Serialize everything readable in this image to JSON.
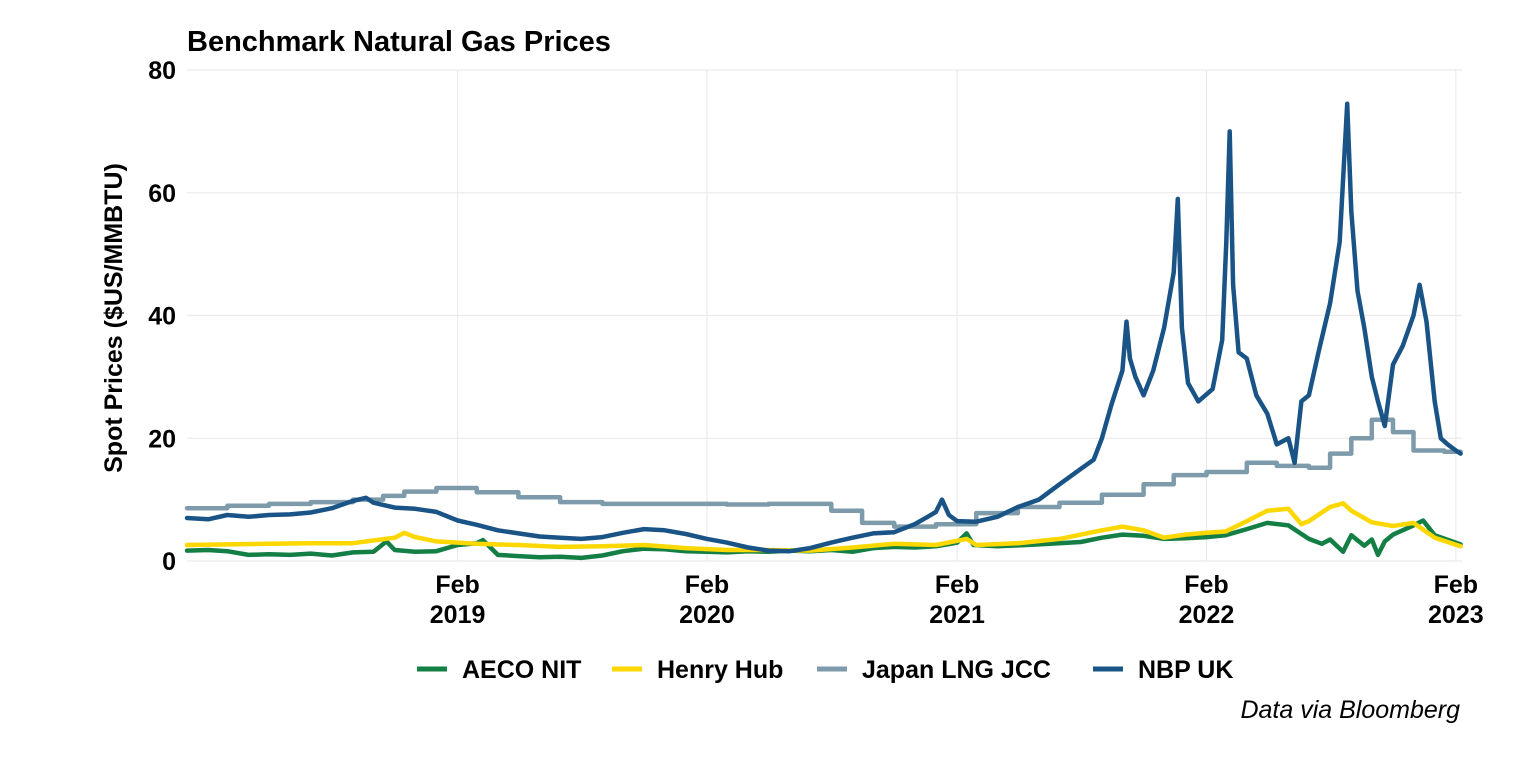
{
  "chart_data": {
    "type": "line",
    "title": "Benchmark Natural Gas Prices",
    "ylabel": "Spot Prices ($US/MMBTU)",
    "xlabel": "",
    "caption": "Data via Bloomberg",
    "grid": true,
    "legend_position": "bottom",
    "xlim": [
      "2018-01-01",
      "2023-02-10"
    ],
    "ylim": [
      0,
      80
    ],
    "y_ticks": [
      {
        "value": 0,
        "label": "0"
      },
      {
        "value": 20,
        "label": "20"
      },
      {
        "value": 40,
        "label": "40"
      },
      {
        "value": 60,
        "label": "60"
      },
      {
        "value": 80,
        "label": "80"
      }
    ],
    "x_ticks": [
      {
        "date": "2019-02-01",
        "line1": "Feb",
        "line2": "2019"
      },
      {
        "date": "2020-02-01",
        "line1": "Feb",
        "line2": "2020"
      },
      {
        "date": "2021-02-01",
        "line1": "Feb",
        "line2": "2021"
      },
      {
        "date": "2022-02-01",
        "line1": "Feb",
        "line2": "2022"
      },
      {
        "date": "2023-02-01",
        "line1": "Feb",
        "line2": "2023"
      }
    ],
    "series": [
      {
        "name": "Japan LNG JCC",
        "color": "#7e9bab",
        "step": true,
        "points": [
          [
            "2018-01-01",
            8.6
          ],
          [
            "2018-03-01",
            9.0
          ],
          [
            "2018-05-01",
            9.3
          ],
          [
            "2018-07-01",
            9.6
          ],
          [
            "2018-09-01",
            10.0
          ],
          [
            "2018-10-15",
            10.6
          ],
          [
            "2018-11-15",
            11.3
          ],
          [
            "2019-01-01",
            11.9
          ],
          [
            "2019-03-01",
            11.2
          ],
          [
            "2019-05-01",
            10.4
          ],
          [
            "2019-07-01",
            9.6
          ],
          [
            "2019-09-01",
            9.3
          ],
          [
            "2019-12-01",
            9.3
          ],
          [
            "2020-03-01",
            9.2
          ],
          [
            "2020-05-01",
            9.3
          ],
          [
            "2020-08-01",
            8.2
          ],
          [
            "2020-09-15",
            6.2
          ],
          [
            "2020-11-01",
            5.6
          ],
          [
            "2021-01-01",
            6.0
          ],
          [
            "2021-03-01",
            7.8
          ],
          [
            "2021-05-01",
            8.8
          ],
          [
            "2021-07-01",
            9.5
          ],
          [
            "2021-09-01",
            10.8
          ],
          [
            "2021-11-01",
            12.5
          ],
          [
            "2021-12-15",
            14.0
          ],
          [
            "2022-02-01",
            14.5
          ],
          [
            "2022-04-01",
            16.0
          ],
          [
            "2022-05-15",
            15.5
          ],
          [
            "2022-07-01",
            15.2
          ],
          [
            "2022-08-01",
            17.5
          ],
          [
            "2022-09-01",
            20.0
          ],
          [
            "2022-10-01",
            23.0
          ],
          [
            "2022-11-01",
            21.0
          ],
          [
            "2022-12-01",
            18.0
          ],
          [
            "2023-01-15",
            17.8
          ],
          [
            "2023-02-08",
            17.8
          ]
        ]
      },
      {
        "name": "AECO NIT",
        "color": "#137f45",
        "points": [
          [
            "2018-01-01",
            1.7
          ],
          [
            "2018-02-01",
            1.8
          ],
          [
            "2018-03-01",
            1.6
          ],
          [
            "2018-04-01",
            1.0
          ],
          [
            "2018-05-01",
            1.1
          ],
          [
            "2018-06-01",
            1.0
          ],
          [
            "2018-07-01",
            1.2
          ],
          [
            "2018-08-01",
            0.9
          ],
          [
            "2018-09-01",
            1.4
          ],
          [
            "2018-10-01",
            1.5
          ],
          [
            "2018-10-20",
            3.2
          ],
          [
            "2018-11-01",
            1.8
          ],
          [
            "2018-12-01",
            1.5
          ],
          [
            "2019-01-01",
            1.6
          ],
          [
            "2019-02-01",
            2.6
          ],
          [
            "2019-03-01",
            2.9
          ],
          [
            "2019-03-10",
            3.4
          ],
          [
            "2019-04-01",
            1.0
          ],
          [
            "2019-05-01",
            0.8
          ],
          [
            "2019-06-01",
            0.6
          ],
          [
            "2019-07-01",
            0.7
          ],
          [
            "2019-08-01",
            0.5
          ],
          [
            "2019-09-01",
            0.9
          ],
          [
            "2019-10-01",
            1.6
          ],
          [
            "2019-11-01",
            2.0
          ],
          [
            "2019-12-01",
            1.9
          ],
          [
            "2020-01-01",
            1.6
          ],
          [
            "2020-02-01",
            1.5
          ],
          [
            "2020-03-01",
            1.4
          ],
          [
            "2020-04-01",
            1.6
          ],
          [
            "2020-05-01",
            1.5
          ],
          [
            "2020-06-01",
            1.7
          ],
          [
            "2020-07-01",
            1.6
          ],
          [
            "2020-08-01",
            1.8
          ],
          [
            "2020-09-01",
            1.5
          ],
          [
            "2020-10-01",
            2.1
          ],
          [
            "2020-11-01",
            2.3
          ],
          [
            "2020-12-01",
            2.2
          ],
          [
            "2021-01-01",
            2.4
          ],
          [
            "2021-02-01",
            3.0
          ],
          [
            "2021-02-15",
            4.5
          ],
          [
            "2021-02-25",
            2.6
          ],
          [
            "2021-04-01",
            2.4
          ],
          [
            "2021-06-01",
            2.7
          ],
          [
            "2021-08-01",
            3.1
          ],
          [
            "2021-09-01",
            3.8
          ],
          [
            "2021-10-01",
            4.3
          ],
          [
            "2021-11-01",
            4.1
          ],
          [
            "2021-12-01",
            3.6
          ],
          [
            "2022-01-01",
            3.7
          ],
          [
            "2022-02-01",
            3.9
          ],
          [
            "2022-03-01",
            4.2
          ],
          [
            "2022-04-01",
            5.2
          ],
          [
            "2022-05-01",
            6.2
          ],
          [
            "2022-06-01",
            5.8
          ],
          [
            "2022-07-01",
            3.6
          ],
          [
            "2022-07-20",
            2.8
          ],
          [
            "2022-08-01",
            3.5
          ],
          [
            "2022-08-20",
            1.5
          ],
          [
            "2022-09-01",
            4.2
          ],
          [
            "2022-09-20",
            2.5
          ],
          [
            "2022-10-01",
            3.5
          ],
          [
            "2022-10-10",
            1.0
          ],
          [
            "2022-10-20",
            3.2
          ],
          [
            "2022-11-01",
            4.3
          ],
          [
            "2022-12-01",
            5.8
          ],
          [
            "2022-12-15",
            6.6
          ],
          [
            "2023-01-01",
            4.2
          ],
          [
            "2023-02-08",
            2.7
          ]
        ]
      },
      {
        "name": "Henry Hub",
        "color": "#fcd700",
        "points": [
          [
            "2018-01-01",
            2.6
          ],
          [
            "2018-03-01",
            2.7
          ],
          [
            "2018-05-01",
            2.8
          ],
          [
            "2018-07-01",
            2.9
          ],
          [
            "2018-09-01",
            2.9
          ],
          [
            "2018-11-01",
            3.8
          ],
          [
            "2018-11-15",
            4.6
          ],
          [
            "2018-12-01",
            3.9
          ],
          [
            "2019-01-01",
            3.2
          ],
          [
            "2019-03-01",
            2.8
          ],
          [
            "2019-05-01",
            2.6
          ],
          [
            "2019-07-01",
            2.3
          ],
          [
            "2019-09-01",
            2.4
          ],
          [
            "2019-11-01",
            2.6
          ],
          [
            "2020-01-01",
            2.1
          ],
          [
            "2020-03-01",
            1.8
          ],
          [
            "2020-05-01",
            1.8
          ],
          [
            "2020-07-01",
            1.7
          ],
          [
            "2020-09-01",
            2.2
          ],
          [
            "2020-11-01",
            2.8
          ],
          [
            "2021-01-01",
            2.6
          ],
          [
            "2021-02-15",
            3.6
          ],
          [
            "2021-03-01",
            2.6
          ],
          [
            "2021-05-01",
            2.9
          ],
          [
            "2021-07-01",
            3.6
          ],
          [
            "2021-09-01",
            5.0
          ],
          [
            "2021-10-01",
            5.6
          ],
          [
            "2021-11-01",
            5.0
          ],
          [
            "2021-12-01",
            3.8
          ],
          [
            "2022-01-01",
            4.3
          ],
          [
            "2022-02-01",
            4.6
          ],
          [
            "2022-03-01",
            4.8
          ],
          [
            "2022-04-01",
            6.5
          ],
          [
            "2022-05-01",
            8.2
          ],
          [
            "2022-06-01",
            8.5
          ],
          [
            "2022-06-20",
            6.0
          ],
          [
            "2022-07-01",
            6.5
          ],
          [
            "2022-08-01",
            8.8
          ],
          [
            "2022-08-20",
            9.4
          ],
          [
            "2022-09-01",
            8.2
          ],
          [
            "2022-10-01",
            6.3
          ],
          [
            "2022-11-01",
            5.7
          ],
          [
            "2022-12-01",
            6.2
          ],
          [
            "2023-01-01",
            3.8
          ],
          [
            "2023-02-08",
            2.4
          ]
        ]
      },
      {
        "name": "NBP UK",
        "color": "#1a5486",
        "points": [
          [
            "2018-01-01",
            7.0
          ],
          [
            "2018-02-01",
            6.8
          ],
          [
            "2018-03-01",
            7.5
          ],
          [
            "2018-04-01",
            7.2
          ],
          [
            "2018-05-01",
            7.5
          ],
          [
            "2018-06-01",
            7.6
          ],
          [
            "2018-07-01",
            7.9
          ],
          [
            "2018-08-01",
            8.6
          ],
          [
            "2018-09-01",
            9.8
          ],
          [
            "2018-09-20",
            10.3
          ],
          [
            "2018-10-01",
            9.5
          ],
          [
            "2018-11-01",
            8.7
          ],
          [
            "2018-12-01",
            8.5
          ],
          [
            "2019-01-01",
            8.0
          ],
          [
            "2019-02-01",
            6.6
          ],
          [
            "2019-03-01",
            5.9
          ],
          [
            "2019-04-01",
            5.0
          ],
          [
            "2019-05-01",
            4.5
          ],
          [
            "2019-06-01",
            4.0
          ],
          [
            "2019-07-01",
            3.8
          ],
          [
            "2019-08-01",
            3.6
          ],
          [
            "2019-09-01",
            3.9
          ],
          [
            "2019-10-01",
            4.6
          ],
          [
            "2019-11-01",
            5.2
          ],
          [
            "2019-12-01",
            5.0
          ],
          [
            "2020-01-01",
            4.4
          ],
          [
            "2020-02-01",
            3.6
          ],
          [
            "2020-03-01",
            3.0
          ],
          [
            "2020-04-01",
            2.2
          ],
          [
            "2020-05-01",
            1.7
          ],
          [
            "2020-06-01",
            1.6
          ],
          [
            "2020-07-01",
            2.1
          ],
          [
            "2020-08-01",
            3.0
          ],
          [
            "2020-09-01",
            3.8
          ],
          [
            "2020-10-01",
            4.5
          ],
          [
            "2020-11-01",
            4.7
          ],
          [
            "2020-12-01",
            6.0
          ],
          [
            "2020-12-20",
            7.2
          ],
          [
            "2021-01-01",
            8.0
          ],
          [
            "2021-01-10",
            10.0
          ],
          [
            "2021-01-20",
            7.5
          ],
          [
            "2021-02-01",
            6.5
          ],
          [
            "2021-03-01",
            6.4
          ],
          [
            "2021-04-01",
            7.2
          ],
          [
            "2021-05-01",
            8.8
          ],
          [
            "2021-06-01",
            10.0
          ],
          [
            "2021-07-01",
            12.5
          ],
          [
            "2021-08-01",
            15.0
          ],
          [
            "2021-08-20",
            16.5
          ],
          [
            "2021-09-01",
            20.0
          ],
          [
            "2021-09-15",
            25.5
          ],
          [
            "2021-10-01",
            31.0
          ],
          [
            "2021-10-07",
            39.0
          ],
          [
            "2021-10-12",
            33.0
          ],
          [
            "2021-10-20",
            30.0
          ],
          [
            "2021-11-01",
            27.0
          ],
          [
            "2021-11-15",
            31.0
          ],
          [
            "2021-12-01",
            38.0
          ],
          [
            "2021-12-15",
            47.0
          ],
          [
            "2021-12-21",
            59.0
          ],
          [
            "2021-12-27",
            38.0
          ],
          [
            "2022-01-05",
            29.0
          ],
          [
            "2022-01-20",
            26.0
          ],
          [
            "2022-02-10",
            28.0
          ],
          [
            "2022-02-24",
            36.0
          ],
          [
            "2022-03-02",
            52.0
          ],
          [
            "2022-03-07",
            70.0
          ],
          [
            "2022-03-12",
            45.0
          ],
          [
            "2022-03-20",
            34.0
          ],
          [
            "2022-04-01",
            33.0
          ],
          [
            "2022-04-15",
            27.0
          ],
          [
            "2022-05-01",
            24.0
          ],
          [
            "2022-05-15",
            19.0
          ],
          [
            "2022-06-01",
            20.0
          ],
          [
            "2022-06-10",
            16.0
          ],
          [
            "2022-06-20",
            26.0
          ],
          [
            "2022-07-01",
            27.0
          ],
          [
            "2022-07-15",
            34.0
          ],
          [
            "2022-08-01",
            42.0
          ],
          [
            "2022-08-15",
            52.0
          ],
          [
            "2022-08-26",
            74.5
          ],
          [
            "2022-09-01",
            57.0
          ],
          [
            "2022-09-10",
            44.0
          ],
          [
            "2022-09-20",
            38.0
          ],
          [
            "2022-10-01",
            30.0
          ],
          [
            "2022-10-10",
            26.0
          ],
          [
            "2022-10-20",
            22.0
          ],
          [
            "2022-11-01",
            32.0
          ],
          [
            "2022-11-15",
            35.0
          ],
          [
            "2022-12-01",
            40.0
          ],
          [
            "2022-12-10",
            45.0
          ],
          [
            "2022-12-20",
            39.0
          ],
          [
            "2023-01-01",
            26.0
          ],
          [
            "2023-01-10",
            20.0
          ],
          [
            "2023-01-20",
            19.0
          ],
          [
            "2023-02-01",
            18.0
          ],
          [
            "2023-02-08",
            17.5
          ]
        ]
      }
    ]
  }
}
